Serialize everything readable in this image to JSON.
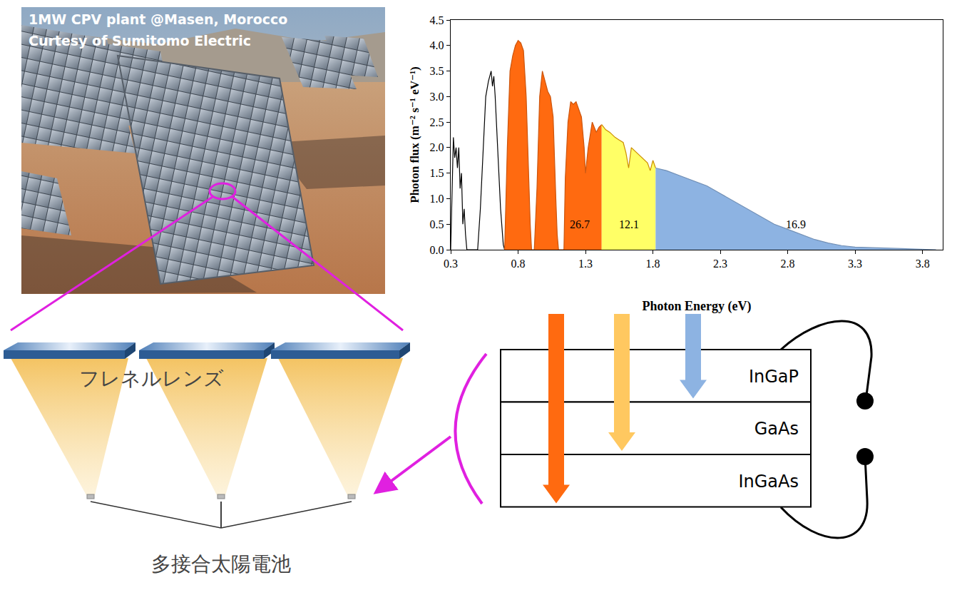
{
  "photo": {
    "caption": [
      "1MW CPV plant @Masen, Morocco",
      "Curtesy of Sumitomo Electric"
    ]
  },
  "chart_data": {
    "type": "area",
    "x_label": "Photon Energy (eV)",
    "y_label": "Photon flux (m⁻² s⁻¹ eV⁻¹)",
    "xlim": [
      0.3,
      3.95
    ],
    "ylim": [
      0,
      4.5
    ],
    "xticks": [
      0.3,
      0.8,
      1.3,
      1.8,
      2.3,
      2.8,
      3.3,
      3.8
    ],
    "yticks": [
      {
        "value": 0,
        "label": "0.0"
      },
      0.5,
      {
        "value": 1,
        "label": "1.0"
      },
      1.5,
      {
        "value": 2,
        "label": "2.0"
      },
      2.5,
      {
        "value": 3,
        "label": "3.0"
      },
      3.5,
      {
        "value": 4,
        "label": "4.0"
      },
      4.5
    ],
    "grid": false,
    "series": [
      {
        "type": "line",
        "color": "#000000",
        "x": [
          0.3,
          0.31,
          0.32,
          0.33,
          0.34,
          0.35,
          0.36,
          0.37,
          0.38,
          0.39,
          0.4,
          0.41,
          0.42,
          0.45,
          0.5,
          0.52,
          0.54,
          0.56,
          0.58,
          0.6,
          0.61,
          0.62,
          0.63,
          0.65,
          0.67,
          0.69,
          0.7
        ],
        "values": [
          0,
          1.2,
          2.2,
          1.8,
          2.0,
          1.6,
          2.0,
          1.2,
          1.5,
          0.5,
          0.8,
          0.3,
          0,
          0,
          0,
          0.8,
          2.0,
          3.0,
          3.3,
          3.5,
          3.2,
          3.4,
          3.0,
          2.0,
          0.8,
          0.1,
          0
        ]
      },
      {
        "type": "area",
        "color": "#ff6a10",
        "label": "26.7",
        "x": [
          0.7,
          0.72,
          0.74,
          0.76,
          0.78,
          0.8,
          0.82,
          0.84,
          0.86,
          0.88,
          0.89,
          0.9,
          0.92,
          0.94,
          0.96,
          0.98,
          1.0,
          1.02,
          1.04,
          1.06,
          1.08,
          1.09,
          1.1,
          1.14,
          1.15,
          1.17,
          1.19,
          1.21,
          1.23,
          1.25,
          1.27,
          1.29,
          1.3,
          1.32,
          1.35,
          1.38,
          1.4,
          1.42
        ],
        "values": [
          0,
          2.0,
          3.5,
          3.8,
          4.0,
          4.1,
          4.05,
          3.9,
          3.0,
          1.2,
          0.5,
          0,
          0,
          1.2,
          3.0,
          3.5,
          3.3,
          3.1,
          3.0,
          2.6,
          1.0,
          0.3,
          0,
          0,
          1.4,
          2.5,
          2.9,
          2.85,
          2.9,
          2.75,
          2.6,
          2.0,
          1.5,
          2.0,
          2.5,
          2.3,
          2.4,
          2.45
        ]
      },
      {
        "type": "area",
        "color": "#ffff66",
        "label": "12.1",
        "x": [
          1.42,
          1.45,
          1.48,
          1.52,
          1.55,
          1.58,
          1.6,
          1.62,
          1.64,
          1.68,
          1.72,
          1.76,
          1.78,
          1.8,
          1.82
        ],
        "values": [
          2.45,
          2.35,
          2.3,
          2.2,
          2.15,
          2.1,
          1.9,
          1.6,
          2.0,
          1.9,
          1.8,
          1.7,
          1.55,
          1.75,
          1.6
        ]
      },
      {
        "type": "area",
        "color": "#8db3e2",
        "label": "16.9",
        "x": [
          1.82,
          1.9,
          2.0,
          2.1,
          2.2,
          2.3,
          2.4,
          2.5,
          2.6,
          2.7,
          2.8,
          2.9,
          3.0,
          3.1,
          3.2,
          3.3,
          3.5,
          3.8,
          3.9
        ],
        "values": [
          1.6,
          1.55,
          1.45,
          1.35,
          1.25,
          1.1,
          0.95,
          0.8,
          0.65,
          0.5,
          0.4,
          0.3,
          0.2,
          0.13,
          0.08,
          0.05,
          0.03,
          0.01,
          0
        ]
      }
    ]
  },
  "diagram": {
    "lens_label": "フレネルレンズ",
    "cell_label": "多接合太陽電池",
    "layers": [
      "InGaP",
      "GaAs",
      "InGaAs"
    ]
  }
}
